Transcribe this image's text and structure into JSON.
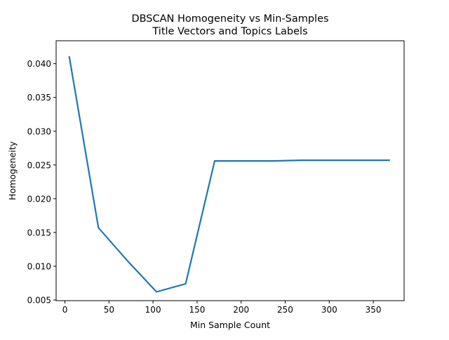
{
  "chart_data": {
    "type": "line",
    "title_line1": "DBSCAN Homogeneity vs Min-Samples",
    "title_line2": "Title Vectors and Topics Labels",
    "xlabel": "Min Sample Count",
    "ylabel": "Homogeneity",
    "xlim": [
      -10,
      385
    ],
    "ylim": [
      0.0049,
      0.0434
    ],
    "xticks": [
      0,
      50,
      100,
      150,
      200,
      250,
      300,
      350
    ],
    "yticks": [
      0.005,
      0.01,
      0.015,
      0.02,
      0.025,
      0.03,
      0.035,
      0.04
    ],
    "ytick_labels": [
      "0.005",
      "0.010",
      "0.015",
      "0.020",
      "0.025",
      "0.030",
      "0.035",
      "0.040"
    ],
    "grid": false,
    "series": [
      {
        "color": "#1f77b4",
        "x": [
          5,
          38,
          71,
          104,
          137,
          170,
          203,
          236,
          269,
          302,
          335,
          368
        ],
        "y": [
          0.041,
          0.0157,
          0.0108,
          0.0062,
          0.0074,
          0.0256,
          0.0256,
          0.0256,
          0.0257,
          0.0257,
          0.0257,
          0.0257
        ]
      }
    ]
  }
}
